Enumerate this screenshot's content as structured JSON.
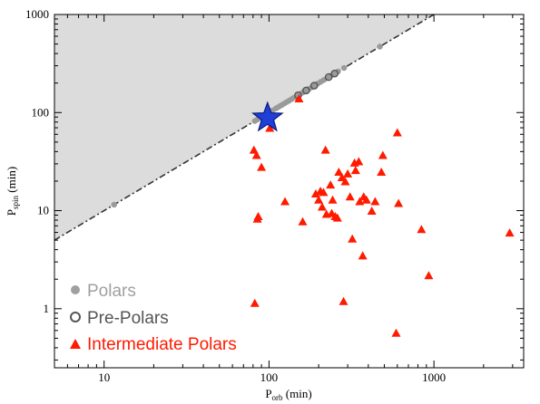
{
  "chart_data": {
    "type": "scatter",
    "x_axis": {
      "label_main": "P",
      "label_sub": "orb",
      "label_unit": " (min)",
      "scale": "log",
      "range": [
        5,
        3500
      ],
      "ticks": [
        {
          "value": 10,
          "label": "10"
        },
        {
          "value": 100,
          "label": "100"
        },
        {
          "value": 1000,
          "label": "1000"
        }
      ]
    },
    "y_axis": {
      "label_main": "P",
      "label_sub": "spin",
      "label_unit": " (min)",
      "scale": "log",
      "range": [
        0.25,
        1000
      ],
      "ticks": [
        {
          "value": 1,
          "label": "1"
        },
        {
          "value": 10,
          "label": "10"
        },
        {
          "value": 100,
          "label": "100"
        },
        {
          "value": 1000,
          "label": "1000"
        }
      ]
    },
    "synchronization_line": {
      "style": "dash-dot",
      "relation": "P_spin = P_orb",
      "shaded_region": "above line",
      "shade_color": "#dcdcdc"
    },
    "highlight_star": {
      "x": 98,
      "y": 88,
      "color": "#1f3fd6"
    },
    "series": [
      {
        "name": "Polars",
        "marker": "filled-circle",
        "color": "#9a9a9a",
        "points": [
          [
            11.5,
            11.5
          ],
          [
            82,
            82
          ],
          [
            85,
            85
          ],
          [
            88,
            88
          ],
          [
            92,
            92
          ],
          [
            96,
            96
          ],
          [
            101,
            101
          ],
          [
            105,
            105
          ],
          [
            110,
            110
          ],
          [
            113,
            113
          ],
          [
            116,
            116
          ],
          [
            120,
            120
          ],
          [
            124,
            124
          ],
          [
            128,
            128
          ],
          [
            132,
            132
          ],
          [
            137,
            137
          ],
          [
            142,
            142
          ],
          [
            148,
            148
          ],
          [
            154,
            154
          ],
          [
            160,
            160
          ],
          [
            167,
            167
          ],
          [
            175,
            175
          ],
          [
            182,
            182
          ],
          [
            190,
            190
          ],
          [
            198,
            198
          ],
          [
            206,
            206
          ],
          [
            215,
            215
          ],
          [
            225,
            225
          ],
          [
            236,
            236
          ],
          [
            248,
            248
          ],
          [
            262,
            262
          ],
          [
            285,
            285
          ],
          [
            470,
            470
          ]
        ]
      },
      {
        "name": "Pre-Polars",
        "marker": "open-circle",
        "color": "#555555",
        "points": [
          [
            150,
            150
          ],
          [
            168,
            168
          ],
          [
            188,
            188
          ],
          [
            230,
            230
          ],
          [
            250,
            250
          ]
        ]
      },
      {
        "name": "Intermediate Polars",
        "marker": "filled-triangle",
        "color": "#ff1a00",
        "points": [
          [
            81,
            42
          ],
          [
            82,
            1.15
          ],
          [
            84,
            37
          ],
          [
            85,
            8.3
          ],
          [
            86,
            8.8
          ],
          [
            90,
            28
          ],
          [
            101,
            70
          ],
          [
            152,
            140
          ],
          [
            125,
            12.5
          ],
          [
            160,
            7.8
          ],
          [
            192,
            15
          ],
          [
            200,
            13
          ],
          [
            205,
            16
          ],
          [
            210,
            11
          ],
          [
            214,
            15.5
          ],
          [
            220,
            42
          ],
          [
            223,
            9.3
          ],
          [
            236,
            18.5
          ],
          [
            240,
            9.5
          ],
          [
            243,
            13
          ],
          [
            252,
            8.8
          ],
          [
            260,
            8.5
          ],
          [
            265,
            25
          ],
          [
            277,
            22
          ],
          [
            283,
            1.2
          ],
          [
            290,
            20
          ],
          [
            300,
            24
          ],
          [
            310,
            14
          ],
          [
            320,
            5.2
          ],
          [
            330,
            31
          ],
          [
            335,
            26
          ],
          [
            350,
            32
          ],
          [
            355,
            12.5
          ],
          [
            370,
            3.5
          ],
          [
            375,
            14
          ],
          [
            390,
            13
          ],
          [
            420,
            10
          ],
          [
            440,
            12.5
          ],
          [
            480,
            25
          ],
          [
            490,
            37
          ],
          [
            590,
            0.57
          ],
          [
            600,
            63
          ],
          [
            610,
            12
          ],
          [
            840,
            6.5
          ],
          [
            930,
            2.2
          ],
          [
            2880,
            6
          ]
        ]
      }
    ],
    "legend": {
      "placement": "bottom-left",
      "entries": [
        {
          "label": "Polars",
          "color": "#a0a0a0",
          "marker": "filled-circle"
        },
        {
          "label": "Pre-Polars",
          "color": "#555555",
          "marker": "open-circle"
        },
        {
          "label": "Intermediate Polars",
          "color": "#ff1a00",
          "marker": "filled-triangle"
        }
      ]
    }
  }
}
